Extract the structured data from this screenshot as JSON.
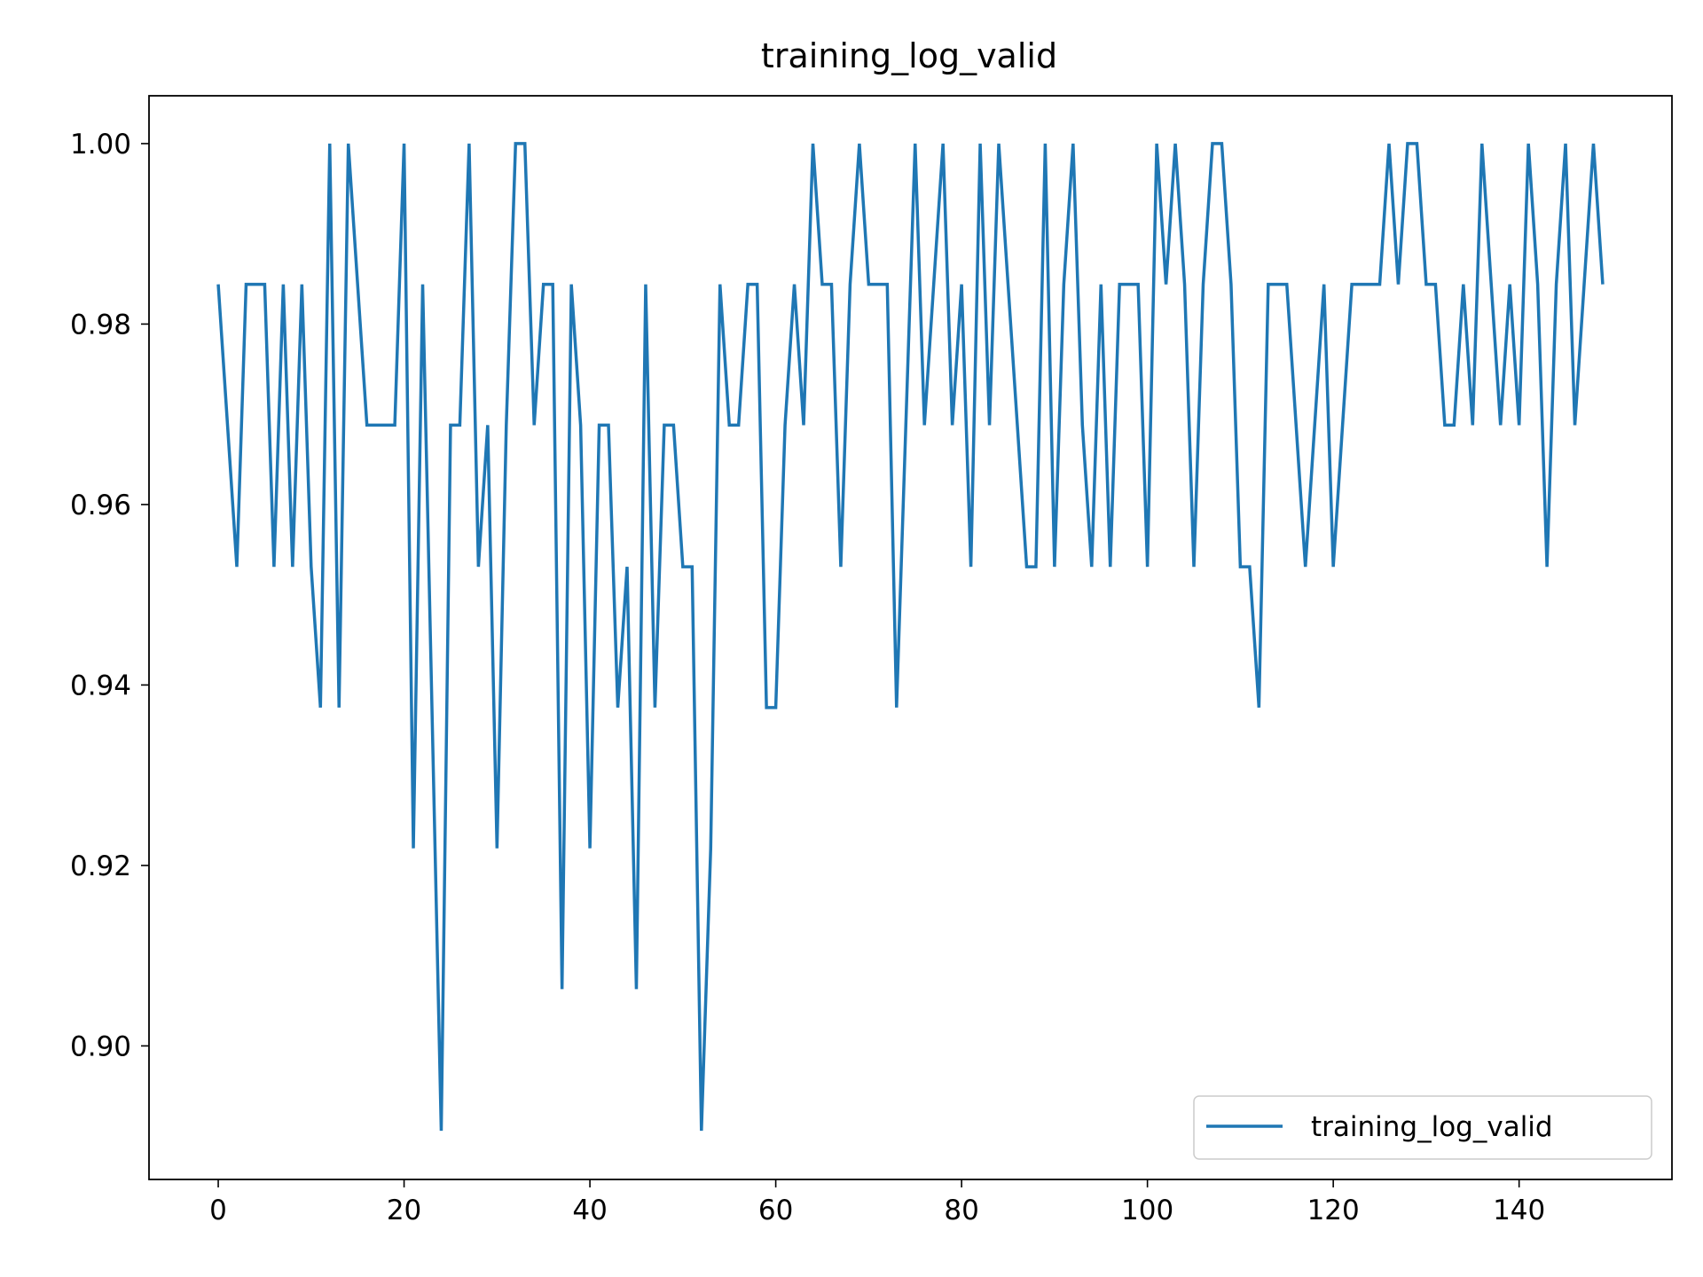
{
  "chart_data": {
    "type": "line",
    "title": "training_log_valid",
    "xlabel": "",
    "ylabel": "",
    "xlim": [
      -7.45,
      156.45
    ],
    "ylim": [
      0.8852,
      1.0053
    ],
    "xticks": [
      0,
      20,
      40,
      60,
      80,
      100,
      120,
      140
    ],
    "xtick_labels": [
      "0",
      "20",
      "40",
      "60",
      "80",
      "100",
      "120",
      "140"
    ],
    "yticks": [
      0.9,
      0.92,
      0.94,
      0.96,
      0.98,
      1.0
    ],
    "ytick_labels": [
      "0.90",
      "0.92",
      "0.94",
      "0.96",
      "0.98",
      "1.00"
    ],
    "grid": false,
    "legend_position": "lower-right",
    "series": [
      {
        "name": "training_log_valid",
        "color": "#1f77b4",
        "x": [
          0,
          1,
          2,
          3,
          4,
          5,
          6,
          7,
          8,
          9,
          10,
          11,
          12,
          13,
          14,
          15,
          16,
          17,
          18,
          19,
          20,
          21,
          22,
          23,
          24,
          25,
          26,
          27,
          28,
          29,
          30,
          31,
          32,
          33,
          34,
          35,
          36,
          37,
          38,
          39,
          40,
          41,
          42,
          43,
          44,
          45,
          46,
          47,
          48,
          49,
          50,
          51,
          52,
          53,
          54,
          55,
          56,
          57,
          58,
          59,
          60,
          61,
          62,
          63,
          64,
          65,
          66,
          67,
          68,
          69,
          70,
          71,
          72,
          73,
          74,
          75,
          76,
          77,
          78,
          79,
          80,
          81,
          82,
          83,
          84,
          85,
          86,
          87,
          88,
          89,
          90,
          91,
          92,
          93,
          94,
          95,
          96,
          97,
          98,
          99,
          100,
          101,
          102,
          103,
          104,
          105,
          106,
          107,
          108,
          109,
          110,
          111,
          112,
          113,
          114,
          115,
          116,
          117,
          118,
          119,
          120,
          121,
          122,
          123,
          124,
          125,
          126,
          127,
          128,
          129,
          130,
          131,
          132,
          133,
          134,
          135,
          136,
          137,
          138,
          139,
          140,
          141,
          142,
          143,
          144,
          145,
          146,
          147,
          148,
          149
        ],
        "values": [
          0.9844,
          0.9688,
          0.9531,
          0.9844,
          0.9844,
          0.9844,
          0.9531,
          0.9844,
          0.9531,
          0.9844,
          0.9531,
          0.9375,
          1.0,
          0.9375,
          1.0,
          0.9844,
          0.9688,
          0.9688,
          0.9688,
          0.9688,
          1.0,
          0.9219,
          0.9844,
          0.9375,
          0.8906,
          0.9688,
          0.9688,
          1.0,
          0.9531,
          0.9688,
          0.9219,
          0.9688,
          1.0,
          1.0,
          0.9688,
          0.9844,
          0.9844,
          0.9063,
          0.9844,
          0.9688,
          0.9219,
          0.9688,
          0.9688,
          0.9375,
          0.9531,
          0.9063,
          0.9844,
          0.9375,
          0.9688,
          0.9688,
          0.9531,
          0.9531,
          0.8906,
          0.9219,
          0.9844,
          0.9688,
          0.9688,
          0.9844,
          0.9844,
          0.9375,
          0.9375,
          0.9688,
          0.9844,
          0.9688,
          1.0,
          0.9844,
          0.9844,
          0.9531,
          0.9844,
          1.0,
          0.9844,
          0.9844,
          0.9844,
          0.9375,
          0.9688,
          1.0,
          0.9688,
          0.9844,
          1.0,
          0.9688,
          0.9844,
          0.9531,
          1.0,
          0.9688,
          1.0,
          0.9844,
          0.9688,
          0.9531,
          0.9531,
          1.0,
          0.9531,
          0.9844,
          1.0,
          0.9688,
          0.9531,
          0.9844,
          0.9531,
          0.9844,
          0.9844,
          0.9844,
          0.9531,
          1.0,
          0.9844,
          1.0,
          0.9844,
          0.9531,
          0.9844,
          1.0,
          1.0,
          0.9844,
          0.9531,
          0.9531,
          0.9375,
          0.9844,
          0.9844,
          0.9844,
          0.9688,
          0.9531,
          0.9688,
          0.9844,
          0.9531,
          0.9688,
          0.9844,
          0.9844,
          0.9844,
          0.9844,
          1.0,
          0.9844,
          1.0,
          1.0,
          0.9844,
          0.9844,
          0.9688,
          0.9688,
          0.9844,
          0.9688,
          1.0,
          0.9844,
          0.9688,
          0.9844,
          0.9688,
          1.0,
          0.9844,
          0.9531,
          0.9844,
          1.0,
          0.9688,
          0.9844,
          1.0,
          0.9844
        ]
      }
    ]
  }
}
